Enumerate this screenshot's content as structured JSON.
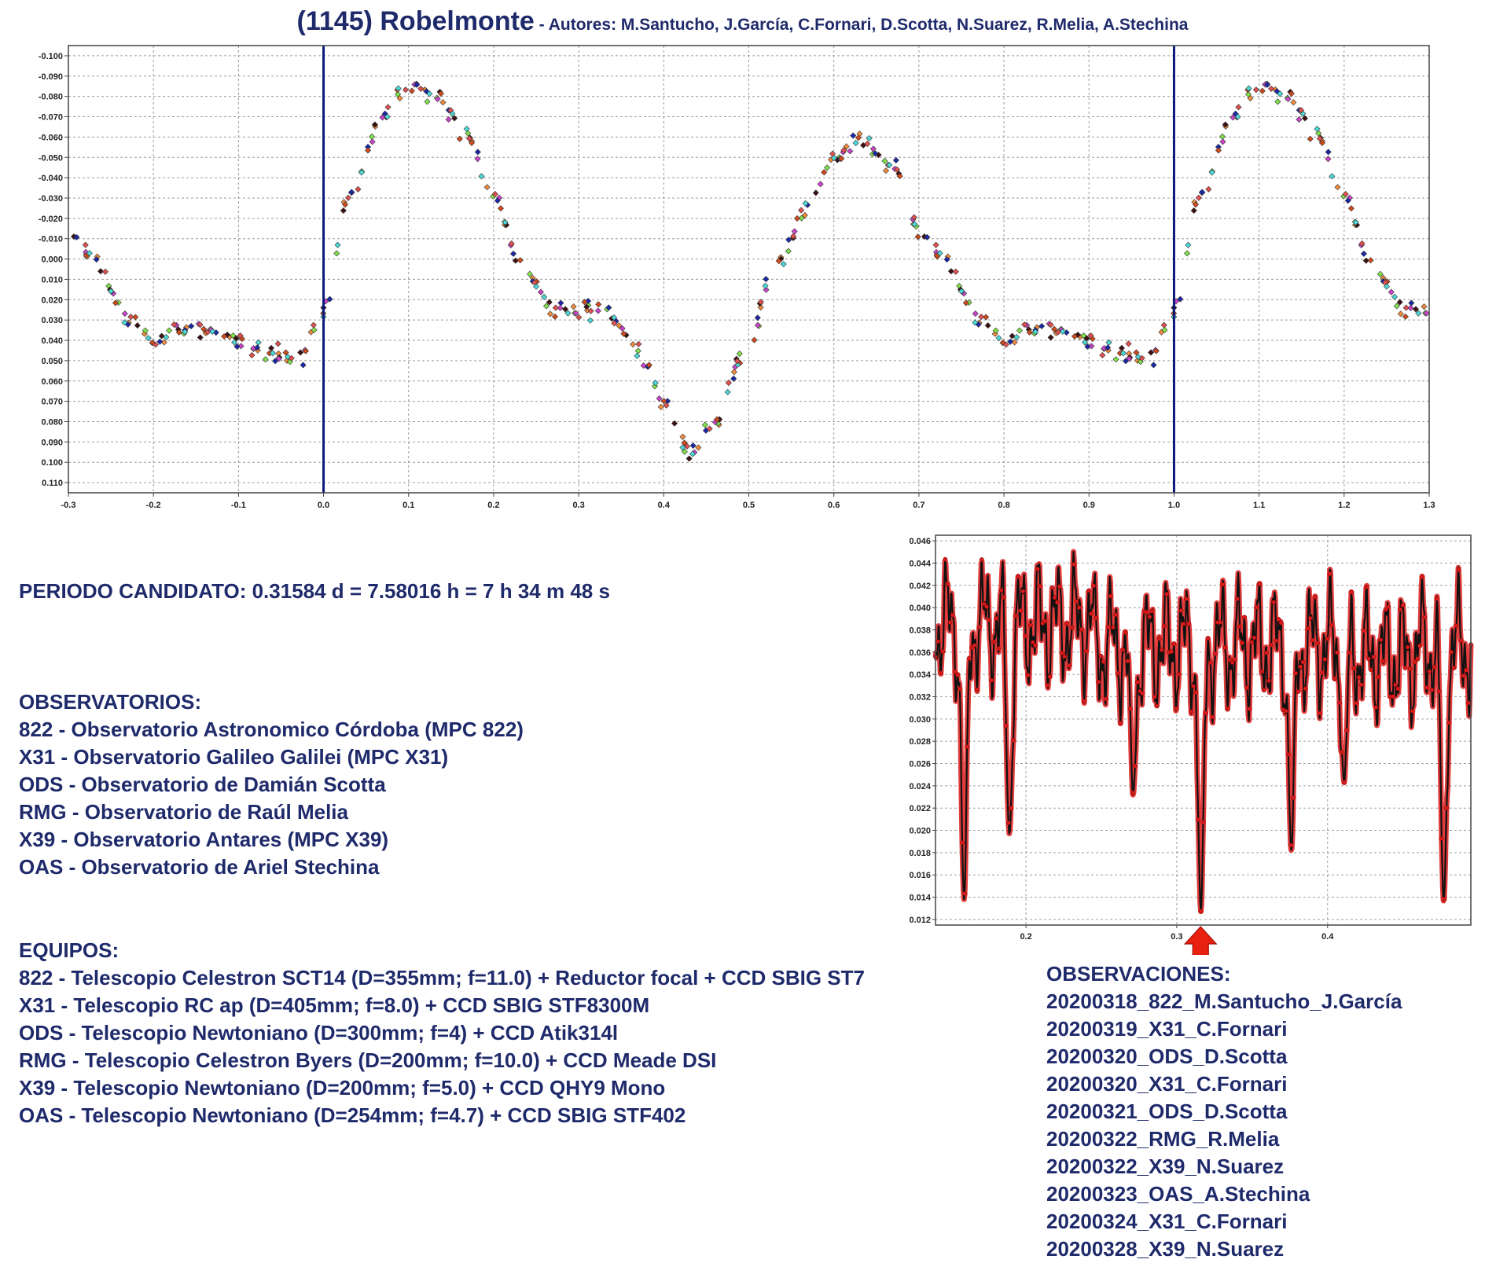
{
  "title": "(1145) Robelmonte",
  "authors": " - Autores: M.Santucho, J.García, C.Fornari, D.Scotta, N.Suarez, R.Melia, A.Stechina",
  "period": "PERIODO CANDIDATO: 0.31584 d = 7.58016 h = 7 h 34 m 48 s",
  "observatories": {
    "heading": "OBSERVATORIOS:",
    "items": [
      "822 - Observatorio Astronomico Córdoba (MPC 822)",
      "X31 - Observatorio Galileo Galilei (MPC X31)",
      "ODS - Observatorio de Damián Scotta",
      "RMG - Observatorio de Raúl Melia",
      "X39 - Observatorio Antares (MPC X39)",
      "OAS - Observatorio de Ariel Stechina"
    ]
  },
  "equipment": {
    "heading": "EQUIPOS:",
    "items": [
      "822 - Telescopio Celestron SCT14 (D=355mm; f=11.0) + Reductor focal + CCD SBIG ST7",
      "X31 - Telescopio RC ap (D=405mm; f=8.0) + CCD SBIG STF8300M",
      "ODS - Telescopio Newtoniano (D=300mm; f=4) + CCD Atik314l",
      "RMG - Telescopio Celestron Byers (D=200mm; f=10.0) + CCD Meade DSI",
      "X39 - Telescopio Newtoniano (D=200mm; f=5.0) + CCD QHY9 Mono",
      "OAS - Telescopio Newtoniano (D=254mm; f=4.7) + CCD SBIG STF402"
    ]
  },
  "observations": {
    "heading": "OBSERVACIONES:",
    "items": [
      "20200318_822_M.Santucho_J.García",
      "20200319_X31_C.Fornari",
      "20200320_ODS_D.Scotta",
      "20200320_X31_C.Fornari",
      "20200321_ODS_D.Scotta",
      "20200322_RMG_R.Melia",
      "20200322_X39_N.Suarez",
      "20200323_OAS_A.Stechina",
      "20200324_X31_C.Fornari",
      "20200328_X39_N.Suarez"
    ]
  },
  "colors": {
    "text": "#1f2a6b",
    "phase_markers": "#0a1a7a",
    "series": [
      "#f08a3c",
      "#7fe04a",
      "#3c1010",
      "#cc44cc",
      "#1a28a8",
      "#d04a1c",
      "#4ad8d8",
      "#e05050"
    ],
    "periodogram_line": "#111111",
    "periodogram_points": "#dd1a1a",
    "arrow": "#e82010"
  },
  "chart_data": [
    {
      "type": "scatter",
      "title": "",
      "xlabel": "",
      "ylabel": "",
      "xlim": [
        -0.3,
        1.3
      ],
      "ylim": [
        0.115,
        -0.105
      ],
      "y_inverted": true,
      "grid": true,
      "x_ticks": [
        "-0.3",
        "-0.2",
        "-0.1",
        "0.0",
        "0.1",
        "0.2",
        "0.3",
        "0.4",
        "0.5",
        "0.6",
        "0.7",
        "0.8",
        "0.9",
        "1.0",
        "1.1",
        "1.2",
        "1.3"
      ],
      "y_ticks": [
        "-0.100",
        "-0.090",
        "-0.080",
        "-0.070",
        "-0.060",
        "-0.050",
        "-0.040",
        "-0.030",
        "-0.020",
        "-0.010",
        "0.000",
        "0.010",
        "0.020",
        "0.030",
        "0.040",
        "0.050",
        "0.060",
        "0.070",
        "0.080",
        "0.090",
        "0.100",
        "0.110"
      ],
      "y_tick_values": [
        -0.1,
        -0.09,
        -0.08,
        -0.07,
        -0.06,
        -0.05,
        -0.04,
        -0.03,
        -0.02,
        -0.01,
        0.0,
        0.01,
        0.02,
        0.03,
        0.04,
        0.05,
        0.06,
        0.07,
        0.08,
        0.09,
        0.1,
        0.11
      ],
      "phase_markers": [
        0.0,
        1.0
      ],
      "light_curve_keypoints": {
        "phase": [
          0.0,
          0.03,
          0.07,
          0.1,
          0.13,
          0.17,
          0.2,
          0.23,
          0.27,
          0.3,
          0.33,
          0.37,
          0.4,
          0.43,
          0.46,
          0.5,
          0.53,
          0.57,
          0.6,
          0.63,
          0.67,
          0.7,
          0.73,
          0.77,
          0.8,
          0.83,
          0.87,
          0.9,
          0.93,
          0.97,
          1.0
        ],
        "magnitude": [
          0.025,
          -0.03,
          -0.07,
          -0.085,
          -0.08,
          -0.06,
          -0.03,
          0.0,
          0.025,
          0.025,
          0.025,
          0.045,
          0.07,
          0.095,
          0.08,
          0.04,
          0.005,
          -0.025,
          -0.05,
          -0.06,
          -0.045,
          -0.015,
          0.0,
          0.03,
          0.04,
          0.035,
          0.035,
          0.04,
          0.045,
          0.05,
          0.025
        ]
      }
    },
    {
      "type": "line",
      "title": "",
      "xlabel": "",
      "ylabel": "",
      "xlim": [
        0.14,
        0.495
      ],
      "ylim": [
        0.0115,
        0.0465
      ],
      "grid": true,
      "x_ticks": [
        "0.2",
        "0.3",
        "0.4"
      ],
      "x_tick_values": [
        0.2,
        0.3,
        0.4
      ],
      "y_ticks": [
        "0.012",
        "0.014",
        "0.016",
        "0.018",
        "0.020",
        "0.022",
        "0.024",
        "0.026",
        "0.028",
        "0.030",
        "0.032",
        "0.034",
        "0.036",
        "0.038",
        "0.040",
        "0.042",
        "0.044",
        "0.046"
      ],
      "y_tick_values": [
        0.012,
        0.014,
        0.016,
        0.018,
        0.02,
        0.022,
        0.024,
        0.026,
        0.028,
        0.03,
        0.032,
        0.034,
        0.036,
        0.038,
        0.04,
        0.042,
        0.044,
        0.046
      ],
      "minima": [
        {
          "x": 0.159,
          "y": 0.0138
        },
        {
          "x": 0.189,
          "y": 0.0197
        },
        {
          "x": 0.271,
          "y": 0.0232
        },
        {
          "x": 0.316,
          "y": 0.0127
        },
        {
          "x": 0.376,
          "y": 0.0182
        },
        {
          "x": 0.411,
          "y": 0.0243
        },
        {
          "x": 0.477,
          "y": 0.0136
        }
      ],
      "selected_period_marker": 0.3158
    }
  ]
}
